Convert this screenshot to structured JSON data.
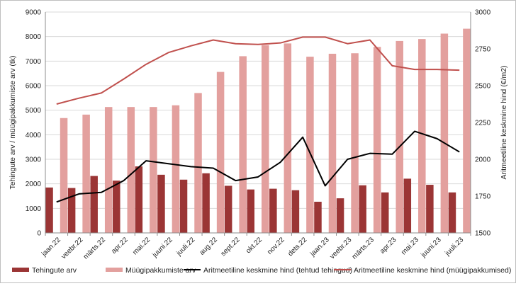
{
  "chart_data": {
    "type": "bar",
    "categories": [
      "jaan.22",
      "veebr.22",
      "märts.22",
      "apr.22",
      "mai.22",
      "juuni.22",
      "juuli.22",
      "aug.22",
      "sept.22",
      "okt.22",
      "nov.22",
      "dets.22",
      "jaan.23",
      "veebr.23",
      "märts.23",
      "apr.23",
      "mai.23",
      "juuni.23",
      "juuli.23"
    ],
    "left_axis": {
      "label": "Tehingute arv / müügipakkumiste arv (tk)",
      "min": 0,
      "max": 9000,
      "ticks": [
        "0",
        "1000",
        "2000",
        "3000",
        "4000",
        "5000",
        "6000",
        "7000",
        "8000",
        "9000"
      ]
    },
    "right_axis": {
      "label": "Aritmeetiline keskmine hind (€/m2)",
      "min": 1500,
      "max": 3000,
      "ticks": [
        "1500",
        "1750",
        "2000",
        "2250",
        "2500",
        "2750",
        "3000"
      ]
    },
    "series": [
      {
        "name": "Tehingute arv",
        "kind": "bar",
        "axis": "left",
        "color": "#9b3535",
        "values": [
          1850,
          1830,
          2320,
          2130,
          2710,
          2370,
          2170,
          2430,
          1920,
          1770,
          1800,
          1740,
          1270,
          1410,
          1940,
          1650,
          2210,
          1960,
          1650
        ]
      },
      {
        "name": "Müügipakkumiste arv",
        "kind": "bar",
        "axis": "left",
        "color": "#e3a09e",
        "values": [
          4680,
          4820,
          5130,
          5130,
          5130,
          5200,
          5700,
          6560,
          7200,
          7650,
          7720,
          7180,
          7300,
          7320,
          7580,
          7820,
          7900,
          8120,
          8320
        ]
      },
      {
        "name": "Aritmeetiline keskmine hind (tehtud tehingud)",
        "kind": "line",
        "axis": "right",
        "color": "#000000",
        "values": [
          1710,
          1765,
          1775,
          1855,
          1990,
          1970,
          1950,
          1940,
          1855,
          1880,
          1980,
          2150,
          1820,
          2000,
          2040,
          2035,
          2190,
          2140,
          2050
        ]
      },
      {
        "name": "Aritmeetiline keskmine hind (müügipakkumised)",
        "kind": "line",
        "axis": "right",
        "color": "#c0504d",
        "values": [
          2375,
          2415,
          2450,
          2545,
          2645,
          2725,
          2770,
          2810,
          2785,
          2780,
          2790,
          2830,
          2830,
          2785,
          2810,
          2635,
          2610,
          2610,
          2605
        ]
      }
    ],
    "legend_position": "bottom",
    "grid": "horizontal"
  }
}
